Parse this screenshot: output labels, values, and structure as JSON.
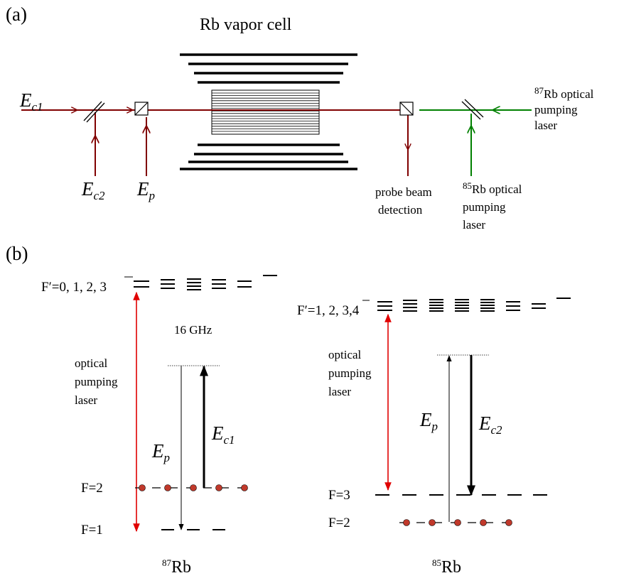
{
  "panel_a": {
    "label": "(a)",
    "cell_title": "Rb vapor cell",
    "ec1": {
      "main": "E",
      "sub": "c1"
    },
    "ec2": {
      "main": "E",
      "sub": "c2"
    },
    "ep": {
      "main": "E",
      "sub": "p"
    },
    "rb87_pump": {
      "sup": "87",
      "line1": "Rb optical",
      "line2": "pumping",
      "line3": "laser"
    },
    "rb85_pump": {
      "sup": "85",
      "line1": "Rb optical",
      "line2": "pumping",
      "line3": "laser"
    },
    "detection": {
      "line1": "probe beam",
      "line2": "detection"
    }
  },
  "panel_b": {
    "label": "(b)",
    "rb87": {
      "excited_label": "F′=0, 1, 2, 3",
      "gap_label": "16 GHz",
      "pump_label": {
        "line1": "optical",
        "line2": "pumping",
        "line3": "laser"
      },
      "ep": {
        "main": "E",
        "sub": "p"
      },
      "ec": {
        "main": "E",
        "sub": "c1"
      },
      "level_upper": "F=2",
      "level_lower": "F=1",
      "isotope": {
        "sup": "87",
        "name": "Rb"
      }
    },
    "rb85": {
      "excited_label": "F′=1, 2, 3,4",
      "pump_label": {
        "line1": "optical",
        "line2": "pumping",
        "line3": "laser"
      },
      "ep": {
        "main": "E",
        "sub": "p"
      },
      "ec": {
        "main": "E",
        "sub": "c2"
      },
      "level_upper": "F=3",
      "level_lower": "F=2",
      "isotope": {
        "sup": "85",
        "name": "Rb"
      }
    }
  },
  "colors": {
    "coupling_beam": "#800000",
    "pump_beam": "#008000",
    "pump_transition": "#e00000",
    "atom_fill": "#c0392b",
    "black": "#000000"
  }
}
